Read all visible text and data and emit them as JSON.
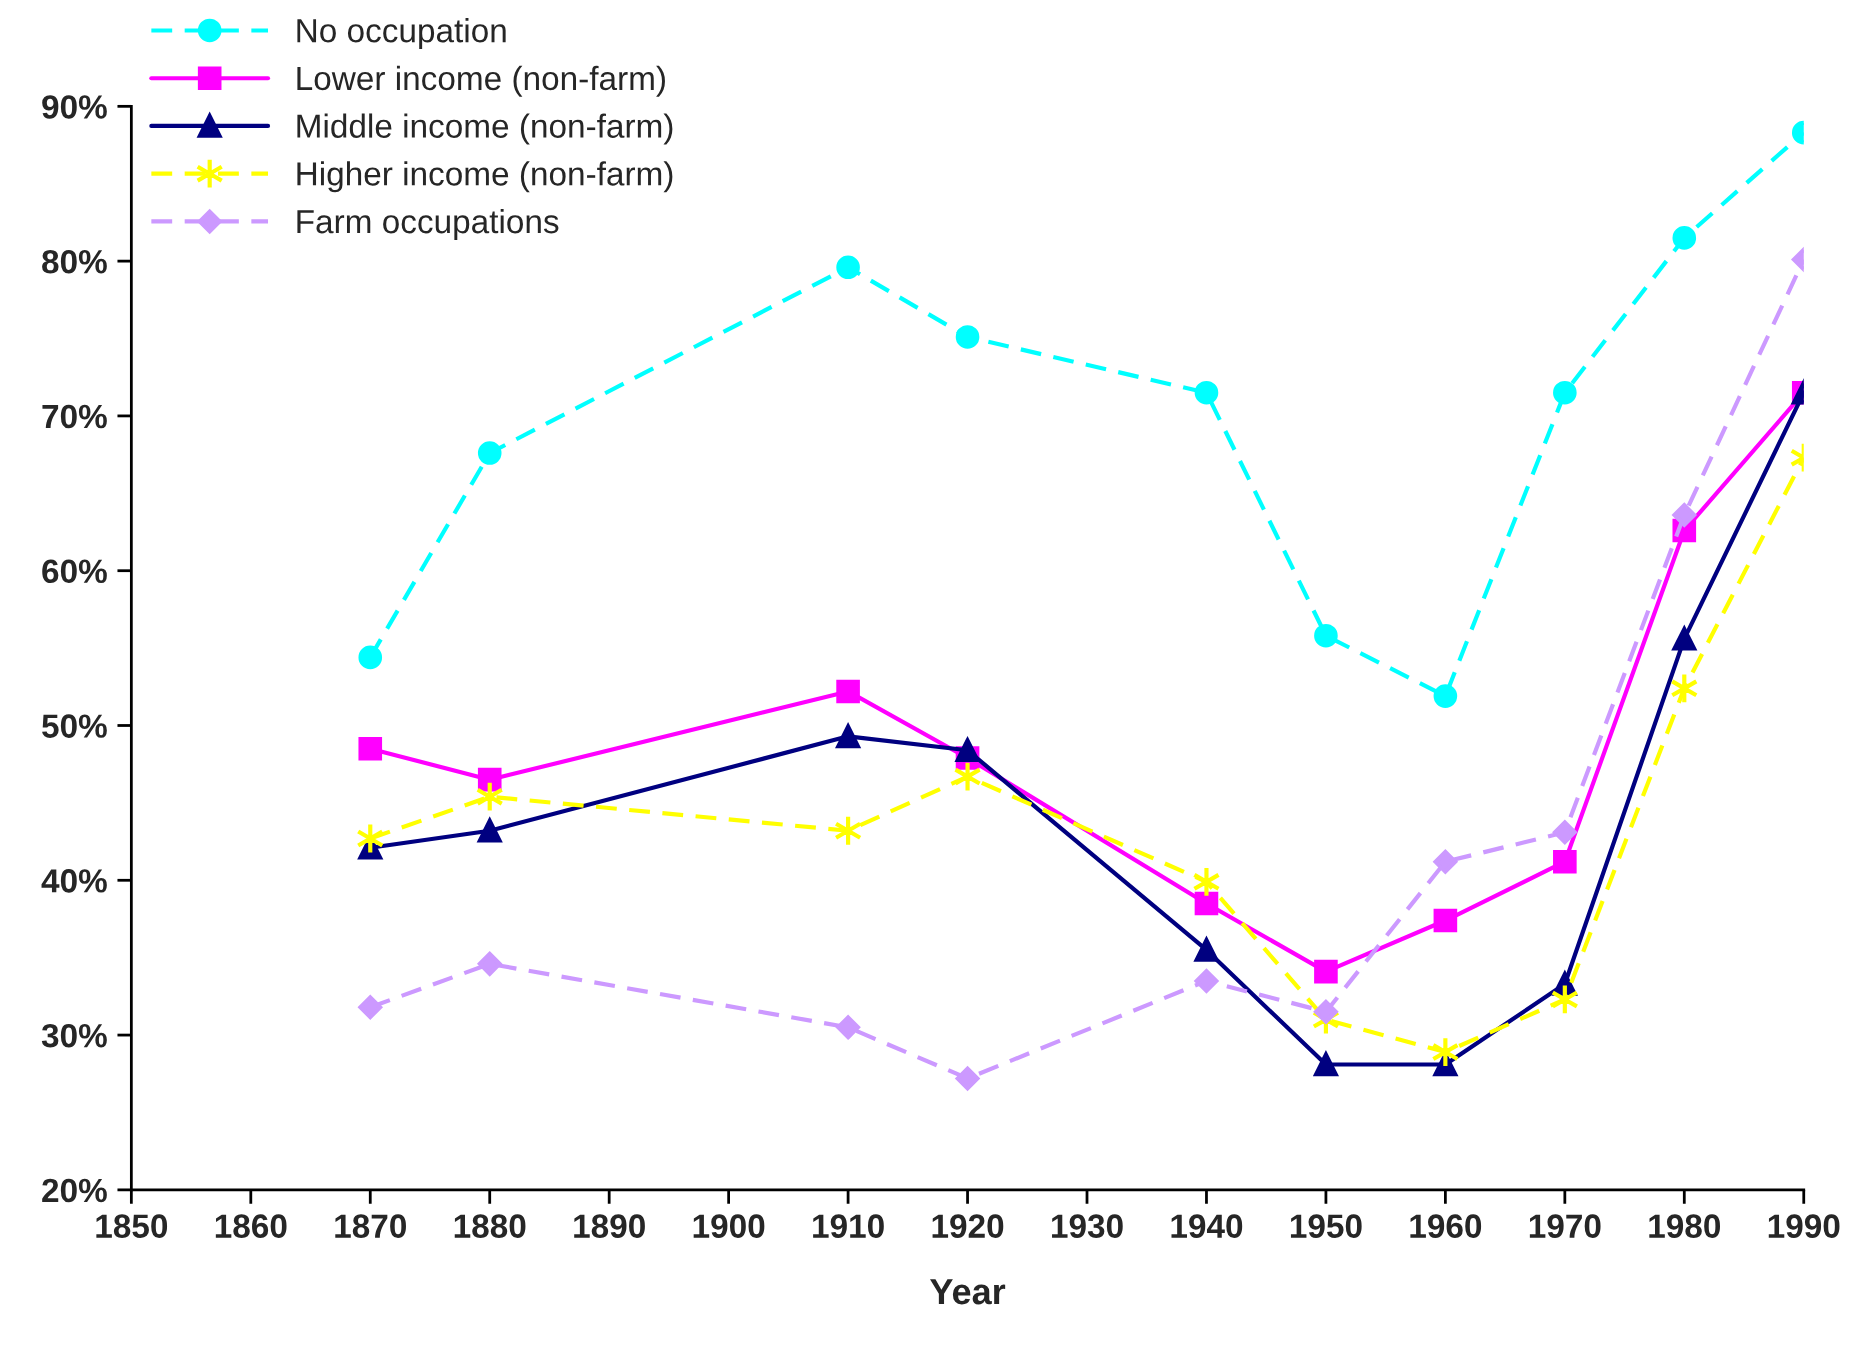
{
  "chart_data": {
    "type": "line",
    "xlabel": "Year",
    "x": [
      1870,
      1880,
      1910,
      1920,
      1940,
      1950,
      1960,
      1970,
      1980,
      1990
    ],
    "series": [
      {
        "name": "No occupation",
        "color": "#00ffff",
        "marker": "circle",
        "line_style": "dashed",
        "values": [
          54.4,
          67.6,
          79.6,
          75.1,
          71.5,
          55.8,
          51.9,
          71.5,
          81.5,
          88.3
        ]
      },
      {
        "name": "Lower income (non-farm)",
        "color": "#ff00ff",
        "marker": "square",
        "line_style": "solid",
        "values": [
          48.5,
          46.5,
          52.2,
          47.9,
          38.5,
          34.1,
          37.4,
          41.2,
          62.6,
          71.5
        ]
      },
      {
        "name": "Middle income (non-farm)",
        "color": "#000080",
        "marker": "triangle",
        "line_style": "solid",
        "values": [
          42.1,
          43.2,
          49.3,
          48.4,
          35.5,
          28.1,
          28.1,
          33.3,
          55.6,
          71.5
        ]
      },
      {
        "name": "Higher income (non-farm)",
        "color": "#ffff00",
        "marker": "cross",
        "line_style": "dashed",
        "values": [
          42.7,
          45.4,
          43.2,
          46.7,
          39.9,
          31.0,
          28.9,
          32.3,
          52.4,
          67.3
        ]
      },
      {
        "name": "Farm occupations",
        "color": "#cc99ff",
        "marker": "diamond",
        "line_style": "dashed",
        "values": [
          31.8,
          34.6,
          30.5,
          27.2,
          33.5,
          31.5,
          41.2,
          43.1,
          63.6,
          80.1
        ]
      }
    ],
    "xlim": [
      1850,
      1990
    ],
    "xticks": [
      1850,
      1860,
      1870,
      1880,
      1890,
      1900,
      1910,
      1920,
      1930,
      1940,
      1950,
      1960,
      1970,
      1980,
      1990
    ],
    "ylim": [
      20,
      90
    ],
    "yticks": [
      {
        "value": 20,
        "label": "20%"
      },
      {
        "value": 30,
        "label": "30%"
      },
      {
        "value": 40,
        "label": "40%"
      },
      {
        "value": 50,
        "label": "50%"
      },
      {
        "value": 60,
        "label": "60%"
      },
      {
        "value": 70,
        "label": "70%"
      },
      {
        "value": 80,
        "label": "80%"
      },
      {
        "value": 90,
        "label": "90%"
      }
    ],
    "grid": false,
    "legend": "top left"
  }
}
